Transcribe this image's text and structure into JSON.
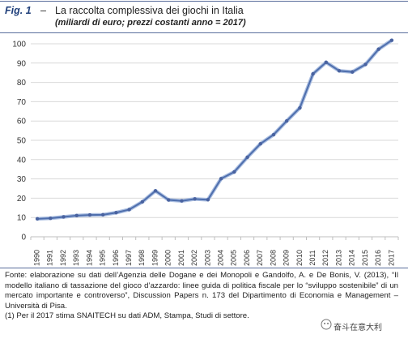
{
  "header": {
    "fig_label": "Fig. 1",
    "dash": "–",
    "title": "La raccolta complessiva dei giochi in Italia",
    "subtitle": "(miliardi di euro; prezzi costanti anno = 2017)"
  },
  "chart_data": {
    "type": "line",
    "title": "",
    "xlabel": "",
    "ylabel": "",
    "categories": [
      "1990",
      "1991",
      "1992",
      "1993",
      "1994",
      "1995",
      "1996",
      "1997",
      "1998",
      "1999",
      "2000",
      "2001",
      "2002",
      "2003",
      "2004",
      "2005",
      "2006",
      "2007",
      "2008",
      "2009",
      "2010",
      "2011",
      "2012",
      "2013",
      "2014",
      "2015",
      "2016",
      "2017"
    ],
    "series": [
      {
        "values": [
          9.3,
          9.6,
          10.3,
          11.0,
          11.3,
          11.4,
          12.5,
          14.1,
          18.1,
          23.8,
          19.1,
          18.6,
          19.6,
          19.2,
          30.1,
          33.6,
          41.2,
          48.2,
          52.9,
          60.0,
          66.8,
          84.4,
          90.4,
          86.0,
          85.4,
          89.3,
          97.2,
          101.8
        ],
        "color": "#4f6fad"
      }
    ],
    "yticks": [
      "0",
      "10",
      "20",
      "30",
      "40",
      "50",
      "60",
      "70",
      "80",
      "90",
      "100"
    ],
    "ylim": [
      0,
      100
    ],
    "grid": true,
    "legend": "none"
  },
  "source": {
    "line1": "Fonte: elaborazione su dati dell’Agenzia delle Dogane e dei Monopoli e Gandolfo, A. e De Bonis, V. (2013), “Il modello italiano di tassazione del gioco d’azzardo: linee guida di politica fiscale per lo “sviluppo sostenibile” di un mercato importante e controverso”, Discussion Papers n. 173 del Dipartimento di Economia e Management – Università di Pisa.",
    "line2": "(1) Per il 2017 stima SNAITECH su dati ADM, Stampa, Studi di settore."
  },
  "watermark": {
    "text": "奋斗在意大利"
  }
}
